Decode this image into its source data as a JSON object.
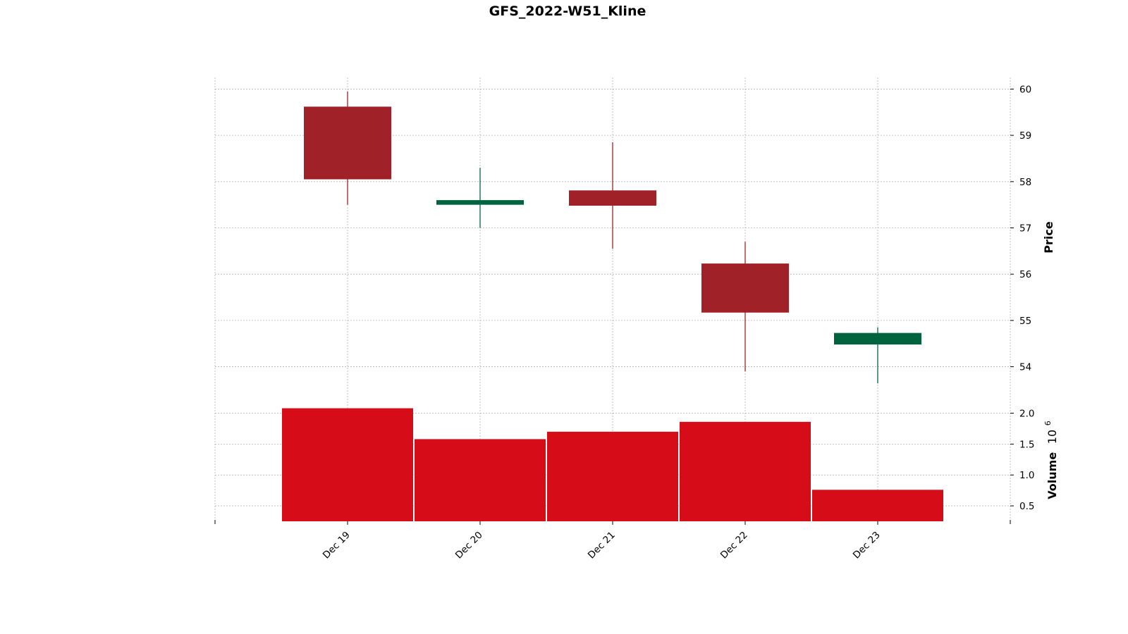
{
  "chart_data": {
    "type": "candlestick",
    "title": "GFS_2022-W51_Kline",
    "categories": [
      "Dec 19",
      "Dec 20",
      "Dec 21",
      "Dec 22",
      "Dec 23"
    ],
    "ohlc": [
      {
        "date": "Dec 19",
        "open": 59.62,
        "high": 59.95,
        "low": 57.5,
        "close": 58.05
      },
      {
        "date": "Dec 20",
        "open": 57.5,
        "high": 58.3,
        "low": 57.0,
        "close": 57.6
      },
      {
        "date": "Dec 21",
        "open": 57.81,
        "high": 58.85,
        "low": 56.55,
        "close": 57.48
      },
      {
        "date": "Dec 22",
        "open": 56.23,
        "high": 56.7,
        "low": 53.9,
        "close": 55.17
      },
      {
        "date": "Dec 23",
        "open": 54.48,
        "high": 54.85,
        "low": 53.64,
        "close": 54.73
      }
    ],
    "volume": [
      2.08,
      1.58,
      1.7,
      1.86,
      0.76
    ],
    "price_axis": {
      "label": "Price",
      "ticks": [
        "54",
        "55",
        "56",
        "57",
        "58",
        "59",
        "60"
      ],
      "range": [
        53.4,
        60.25
      ]
    },
    "volume_axis": {
      "label": "Volume",
      "multiplier": "10",
      "exponent": "6",
      "ticks": [
        "0.5",
        "1.0",
        "1.5",
        "2.0"
      ],
      "range": [
        0.25,
        2.28
      ]
    },
    "grid": true,
    "colors": {
      "up": "#006340",
      "down": "#a02128",
      "volume": "#d60d19"
    }
  }
}
